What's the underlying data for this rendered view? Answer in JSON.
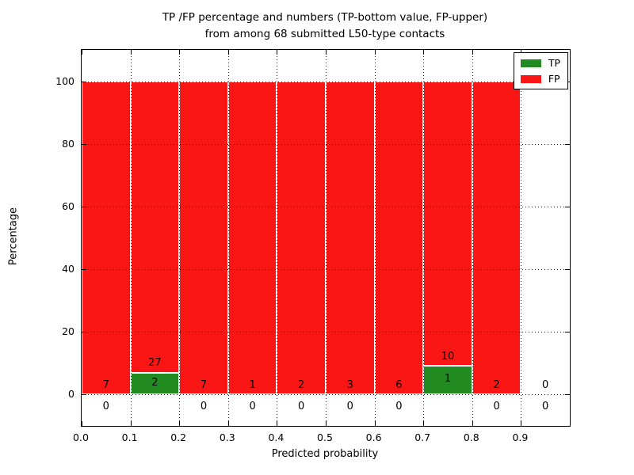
{
  "chart_data": {
    "type": "bar",
    "stacked": true,
    "title_line1": "TP /FP percentage and numbers (TP-bottom value, FP-upper)",
    "title_line2": "from among 68 submitted L50-type contacts",
    "xlabel": "Predicted probability",
    "ylabel": "Percentage",
    "xlim": [
      0.0,
      1.0
    ],
    "ylim": [
      -10,
      110
    ],
    "xticks": [
      "0.0",
      "0.1",
      "0.2",
      "0.3",
      "0.4",
      "0.5",
      "0.6",
      "0.7",
      "0.8",
      "0.9"
    ],
    "yticks": [
      0,
      20,
      40,
      60,
      80,
      100
    ],
    "grid": "dotted",
    "background": "#ffffff",
    "axis_color": "#000000",
    "tp_color": "#218b21",
    "fp_color": "#fb1616",
    "bar_edge_color": "#ffffff",
    "legend": [
      {
        "label": "TP",
        "color": "#218b21"
      },
      {
        "label": "FP",
        "color": "#fb1616"
      }
    ],
    "legend_position": "upper right",
    "bins": [
      {
        "range": [
          0.0,
          0.1
        ],
        "tp": 0,
        "fp": 7
      },
      {
        "range": [
          0.1,
          0.2
        ],
        "tp": 2,
        "fp": 27
      },
      {
        "range": [
          0.2,
          0.3
        ],
        "tp": 0,
        "fp": 7
      },
      {
        "range": [
          0.3,
          0.4
        ],
        "tp": 0,
        "fp": 1
      },
      {
        "range": [
          0.4,
          0.5
        ],
        "tp": 0,
        "fp": 2
      },
      {
        "range": [
          0.5,
          0.6
        ],
        "tp": 0,
        "fp": 3
      },
      {
        "range": [
          0.6,
          0.7
        ],
        "tp": 0,
        "fp": 6
      },
      {
        "range": [
          0.7,
          0.8
        ],
        "tp": 1,
        "fp": 10
      },
      {
        "range": [
          0.8,
          0.9
        ],
        "tp": 0,
        "fp": 2
      },
      {
        "range": [
          0.9,
          1.0
        ],
        "tp": 0,
        "fp": 0
      }
    ],
    "bar_value_semantics": "bars show TP percentage (green, bottom) and FP percentage (red, upper) within each bin, stacked to 100% when bin is non-empty; annotations show raw counts (TP lower number, FP upper number)"
  }
}
